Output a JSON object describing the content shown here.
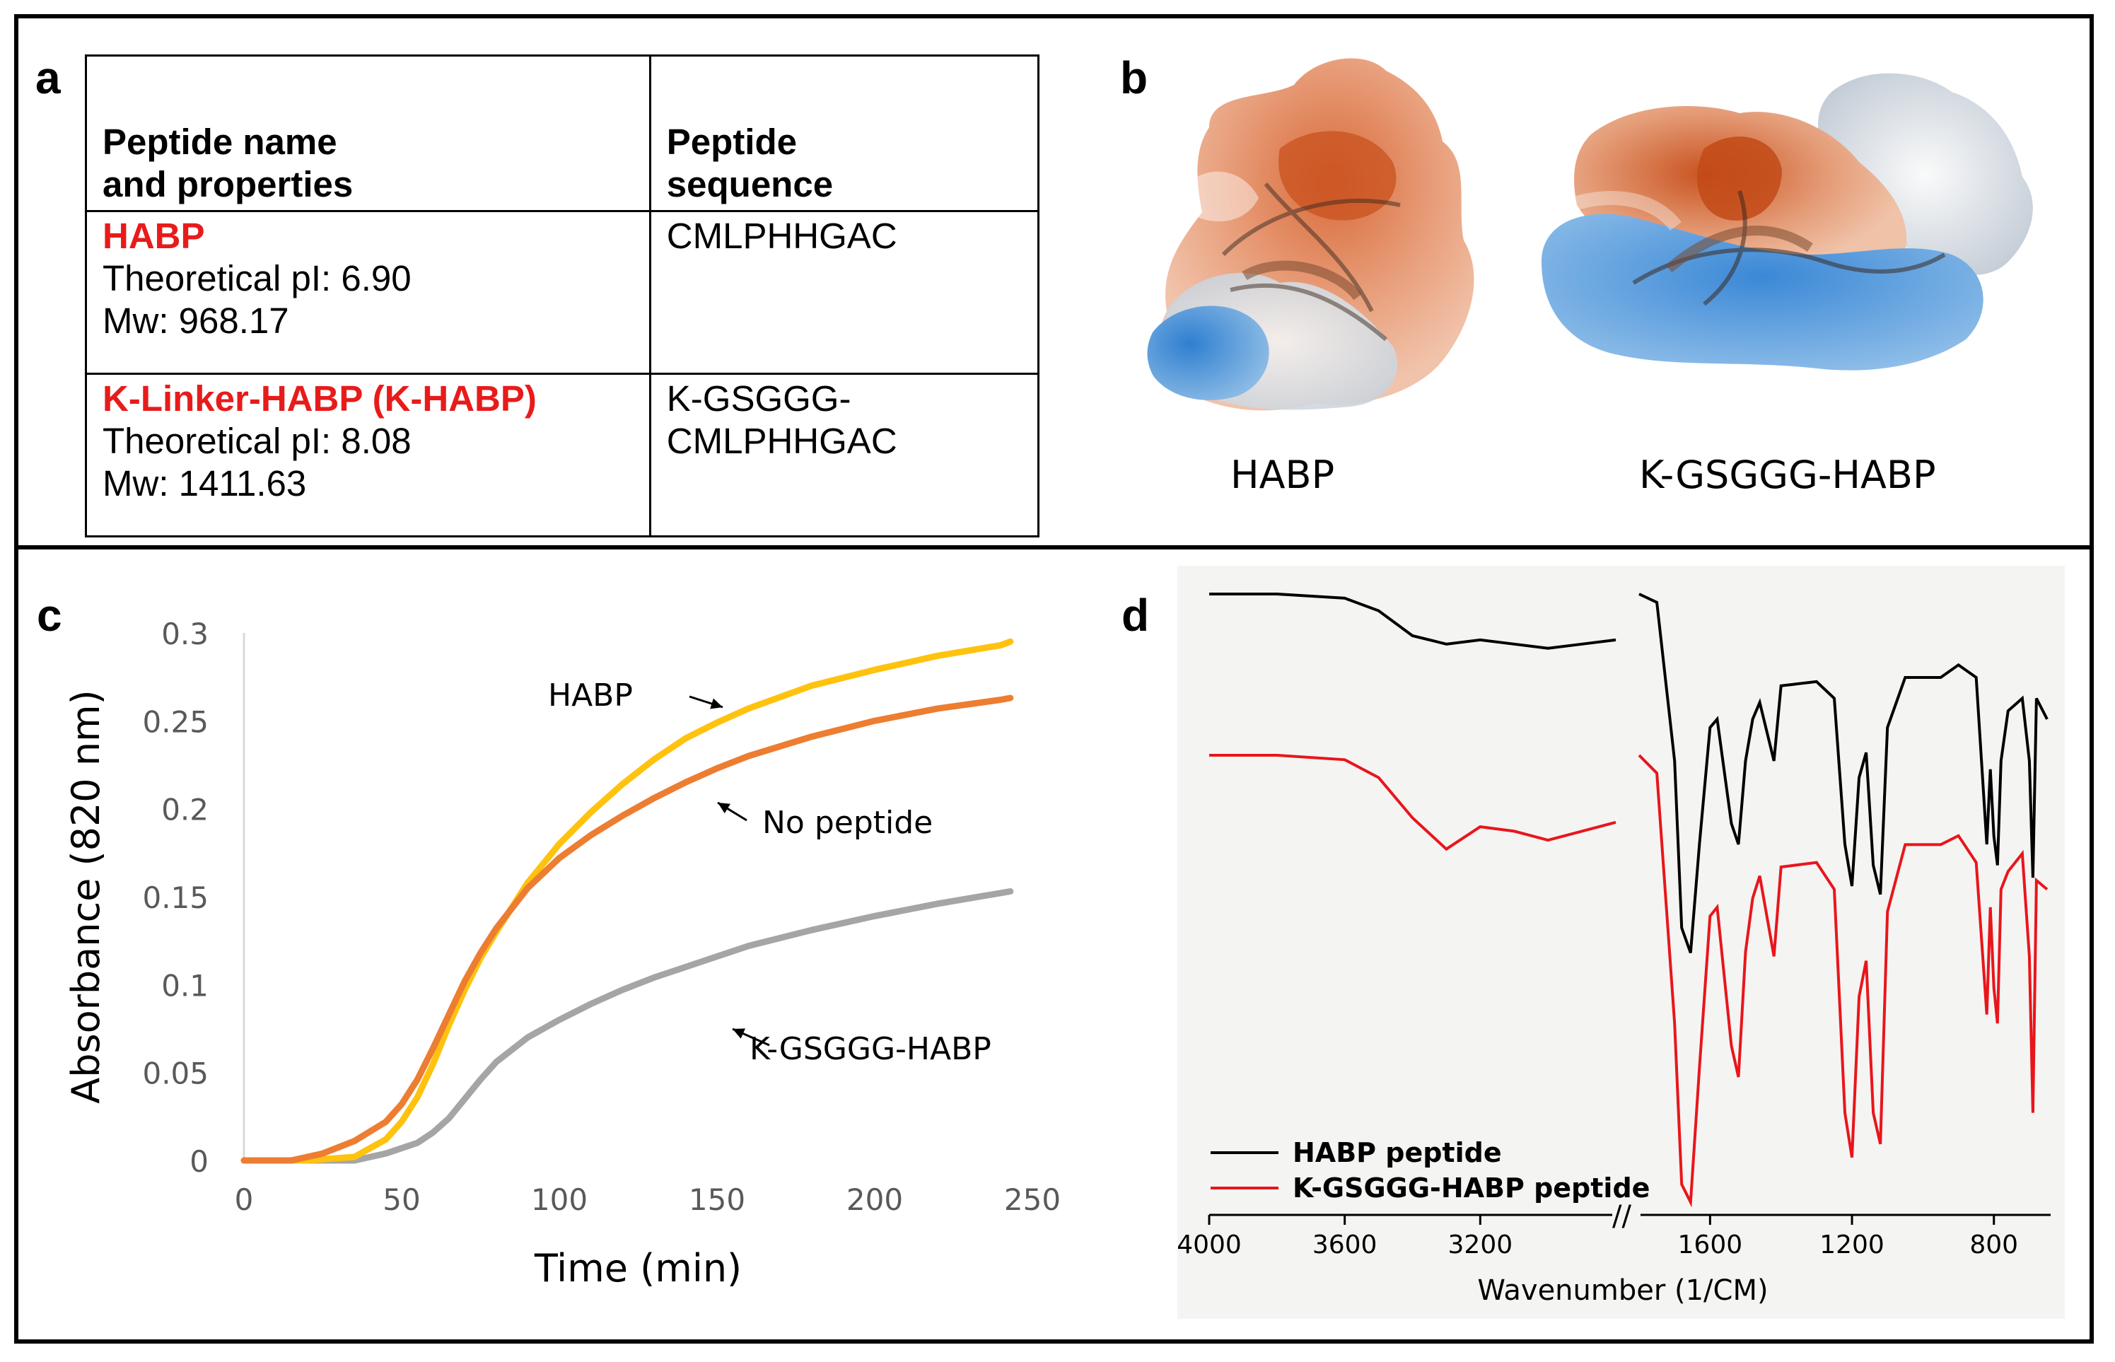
{
  "panel_labels": {
    "a": "a",
    "b": "b",
    "c": "c",
    "d": "d"
  },
  "table": {
    "headers": [
      [
        "Peptide name",
        "and properties"
      ],
      [
        "Peptide",
        "sequence"
      ]
    ],
    "rows": [
      {
        "name": "HABP",
        "pi": "Theoretical pI: 6.90",
        "mw": "Mw: 968.17",
        "sequence": [
          "CMLPHHGAC"
        ]
      },
      {
        "name": "K-Linker-HABP (K-HABP)",
        "pi": "Theoretical pI: 8.08",
        "mw": "Mw: 1411.63",
        "sequence": [
          "K-GSGGG-",
          "CMLPHHGAC"
        ]
      }
    ]
  },
  "structures": {
    "left_caption": "HABP",
    "right_caption": "K-GSGGG-HABP"
  },
  "colors": {
    "habp": "#ffc20e",
    "no_peptide": "#ed7d31",
    "kgsggg": "#a5a5a5",
    "ftir_habp": "#000000",
    "ftir_k": "#e8161b",
    "table_red": "#e81b1b"
  },
  "chart_data": [
    {
      "type": "line",
      "title": "",
      "xlabel": "Time (min)",
      "ylabel": "Absorbance (820 nm)",
      "xlim": [
        0,
        250
      ],
      "ylim": [
        0,
        0.3
      ],
      "xticks": [
        0,
        50,
        100,
        150,
        200,
        250
      ],
      "yticks": [
        "0",
        "0.05",
        "0.1",
        "0.15",
        "0.2",
        "0.25",
        "0.3"
      ],
      "annotations": [
        "HABP",
        "No peptide",
        "K-GSGGG-HABP"
      ],
      "series": [
        {
          "name": "HABP",
          "x": [
            0,
            20,
            35,
            45,
            50,
            55,
            60,
            65,
            70,
            75,
            80,
            90,
            100,
            110,
            120,
            130,
            140,
            150,
            160,
            180,
            200,
            220,
            240,
            243
          ],
          "y": [
            0,
            0,
            0.002,
            0.012,
            0.022,
            0.036,
            0.055,
            0.077,
            0.097,
            0.115,
            0.13,
            0.158,
            0.18,
            0.198,
            0.214,
            0.228,
            0.24,
            0.249,
            0.257,
            0.27,
            0.279,
            0.287,
            0.293,
            0.295
          ]
        },
        {
          "name": "No peptide",
          "x": [
            0,
            15,
            25,
            35,
            45,
            50,
            55,
            60,
            65,
            70,
            75,
            80,
            90,
            100,
            110,
            120,
            130,
            140,
            150,
            160,
            180,
            200,
            220,
            240,
            243
          ],
          "y": [
            0,
            0,
            0.004,
            0.011,
            0.022,
            0.032,
            0.046,
            0.064,
            0.083,
            0.102,
            0.118,
            0.132,
            0.155,
            0.172,
            0.185,
            0.196,
            0.206,
            0.215,
            0.223,
            0.23,
            0.241,
            0.25,
            0.257,
            0.262,
            0.263
          ]
        },
        {
          "name": "K-GSGGG-HABP",
          "x": [
            0,
            35,
            45,
            55,
            60,
            65,
            70,
            75,
            80,
            90,
            100,
            110,
            120,
            130,
            140,
            150,
            160,
            180,
            200,
            220,
            243
          ],
          "y": [
            0,
            0,
            0.004,
            0.01,
            0.016,
            0.024,
            0.035,
            0.046,
            0.056,
            0.07,
            0.08,
            0.089,
            0.097,
            0.104,
            0.11,
            0.116,
            0.122,
            0.131,
            0.139,
            0.146,
            0.153
          ]
        }
      ]
    },
    {
      "type": "line",
      "title": "",
      "xlabel": "Wavenumber (1/CM)",
      "ylabel": "",
      "xticks": [
        "4000",
        "3600",
        "3200",
        "1600",
        "1200",
        "800"
      ],
      "axis_break": "//",
      "legend": [
        "HABP peptide",
        "K-GSGGG-HABP peptide"
      ],
      "legend_position": "bottom-left",
      "series": [
        {
          "name": "HABP peptide",
          "x": [
            4000,
            3800,
            3600,
            3500,
            3400,
            3300,
            3200,
            3100,
            3000,
            2900,
            2800,
            1800,
            1750,
            1700,
            1680,
            1655,
            1630,
            1600,
            1580,
            1540,
            1520,
            1500,
            1480,
            1460,
            1420,
            1400,
            1300,
            1250,
            1220,
            1200,
            1180,
            1160,
            1140,
            1120,
            1100,
            1050,
            950,
            900,
            850,
            820,
            810,
            800,
            790,
            780,
            760,
            720,
            700,
            690,
            680,
            650
          ],
          "y": [
            100,
            100,
            99,
            96,
            90,
            88,
            89,
            88,
            87,
            88,
            89,
            100,
            98,
            60,
            20,
            14,
            40,
            68,
            70,
            45,
            40,
            60,
            70,
            74,
            60,
            78,
            79,
            75,
            40,
            30,
            56,
            62,
            35,
            28,
            68,
            80,
            80,
            83,
            80,
            40,
            58,
            42,
            35,
            60,
            72,
            75,
            60,
            32,
            75,
            70
          ]
        },
        {
          "name": "K-GSGGG-HABP peptide",
          "x": [
            4000,
            3800,
            3600,
            3500,
            3400,
            3300,
            3200,
            3100,
            3000,
            2900,
            2800,
            1800,
            1750,
            1700,
            1680,
            1655,
            1630,
            1600,
            1580,
            1540,
            1520,
            1500,
            1480,
            1460,
            1420,
            1400,
            1300,
            1250,
            1220,
            1200,
            1180,
            1160,
            1140,
            1120,
            1100,
            1050,
            950,
            900,
            850,
            820,
            810,
            800,
            790,
            780,
            760,
            720,
            700,
            690,
            680,
            650
          ],
          "y": [
            100,
            100,
            99,
            95,
            86,
            79,
            84,
            83,
            81,
            83,
            85,
            100,
            96,
            40,
            4,
            0,
            30,
            64,
            66,
            35,
            28,
            56,
            68,
            73,
            55,
            75,
            76,
            70,
            20,
            10,
            46,
            54,
            20,
            13,
            65,
            80,
            80,
            82,
            76,
            42,
            66,
            48,
            40,
            70,
            74,
            78,
            55,
            20,
            72,
            70
          ]
        }
      ]
    }
  ]
}
